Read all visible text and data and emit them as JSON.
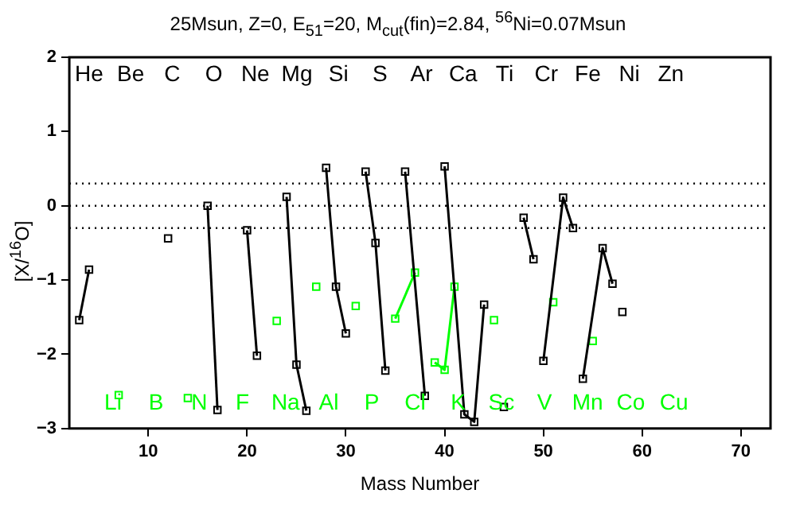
{
  "chart_data": {
    "type": "line",
    "title": "25Msun, Z=0, E$_{51}$=20, M$_{cut}$(fin)=2.84, $^{56}$Ni=0.07Msun",
    "xlabel": "Mass Number",
    "ylabel": "[X/$^{16}$O]",
    "xlim": [
      2,
      73
    ],
    "ylim": [
      -3,
      2
    ],
    "xticks": [
      10,
      20,
      30,
      40,
      50,
      60,
      70
    ],
    "yticks": [
      -3,
      -2,
      -1,
      0,
      1,
      2
    ],
    "grid": false,
    "legend": false,
    "marker": "square",
    "series": [
      {
        "color": "#000000",
        "x": [
          3,
          4
        ],
        "values": [
          -1.54,
          -0.86
        ]
      },
      {
        "color": "#000000",
        "x": [
          12
        ],
        "values": [
          -0.44
        ]
      },
      {
        "color": "#000000",
        "x": [
          16,
          17
        ],
        "values": [
          0.0,
          -2.75
        ]
      },
      {
        "color": "#000000",
        "x": [
          20,
          21
        ],
        "values": [
          -0.33,
          -2.02
        ]
      },
      {
        "color": "#000000",
        "x": [
          24,
          25,
          26
        ],
        "values": [
          0.12,
          -2.14,
          -2.76
        ]
      },
      {
        "color": "#000000",
        "x": [
          28,
          29,
          30
        ],
        "values": [
          0.51,
          -1.09,
          -1.72
        ]
      },
      {
        "color": "#000000",
        "x": [
          32,
          33,
          34
        ],
        "values": [
          0.46,
          -0.5,
          -2.22
        ]
      },
      {
        "color": "#000000",
        "x": [
          36,
          38
        ],
        "values": [
          0.46,
          -2.56
        ]
      },
      {
        "color": "#000000",
        "x": [
          40,
          42,
          43,
          44
        ],
        "values": [
          0.53,
          -2.81,
          -2.91,
          -1.33
        ]
      },
      {
        "color": "#000000",
        "x": [
          46
        ],
        "values": [
          -2.71
        ]
      },
      {
        "color": "#000000",
        "x": [
          48,
          49
        ],
        "values": [
          -0.16,
          -0.72
        ]
      },
      {
        "color": "#000000",
        "x": [
          50,
          52,
          53
        ],
        "values": [
          -2.09,
          0.11,
          -0.3
        ]
      },
      {
        "color": "#000000",
        "x": [
          54,
          56,
          57
        ],
        "values": [
          -2.33,
          -0.57,
          -1.05
        ]
      },
      {
        "color": "#000000",
        "x": [
          58
        ],
        "values": [
          -1.43
        ]
      },
      {
        "color": "#00ff00",
        "x": [
          7
        ],
        "values": [
          -2.55
        ]
      },
      {
        "color": "#00ff00",
        "x": [
          14
        ],
        "values": [
          -2.59
        ]
      },
      {
        "color": "#00ff00",
        "x": [
          23
        ],
        "values": [
          -1.55
        ]
      },
      {
        "color": "#00ff00",
        "x": [
          27
        ],
        "values": [
          -1.09
        ]
      },
      {
        "color": "#00ff00",
        "x": [
          31
        ],
        "values": [
          -1.35
        ]
      },
      {
        "color": "#00ff00",
        "x": [
          35,
          37
        ],
        "values": [
          -1.52,
          -0.9
        ]
      },
      {
        "color": "#00ff00",
        "x": [
          39,
          40,
          41
        ],
        "values": [
          -2.11,
          -2.21,
          -1.09
        ]
      },
      {
        "color": "#00ff00",
        "x": [
          45
        ],
        "values": [
          -1.54
        ]
      },
      {
        "color": "#00ff00",
        "x": [
          51
        ],
        "values": [
          -1.3
        ]
      },
      {
        "color": "#00ff00",
        "x": [
          55
        ],
        "values": [
          -1.82
        ]
      }
    ],
    "ref_lines": [
      {
        "axis": "y",
        "value": 0.3,
        "line_style": "dotted"
      },
      {
        "axis": "y",
        "value": 0,
        "line_style": "dotted"
      },
      {
        "axis": "y",
        "value": -0.3,
        "line_style": "dotted"
      }
    ],
    "annotations": [
      "He Be C O Ne Mg Si S Ar Ca Ti Cr Fe Ni Zn",
      "Li B N F Na Al P Cl K Sc V Mn Co Cu"
    ]
  }
}
